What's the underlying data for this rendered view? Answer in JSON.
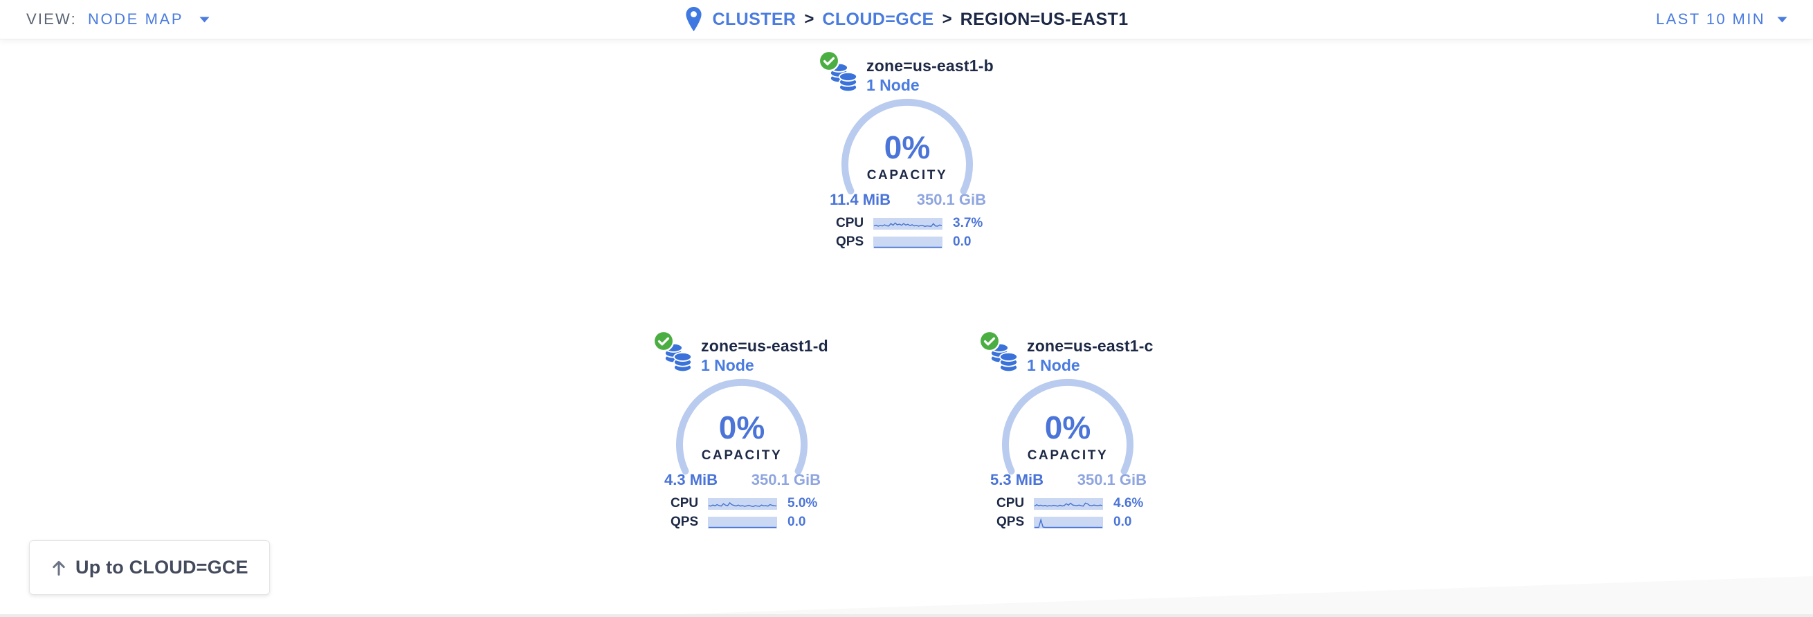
{
  "colors": {
    "accent_blue": "#4a7bdf",
    "value_blue": "#4a74d8",
    "light_blue": "#8fa5e0",
    "arc_blue": "#b9cbee",
    "spark_bg": "#cbd8f3",
    "spark_line": "#4673d1",
    "dark_navy": "#1c2845",
    "gray_text": "#5b6474",
    "green_ok": "#4bae43"
  },
  "toolbar": {
    "view_label": "VIEW:",
    "view_value": "NODE MAP",
    "time_range": "LAST 10 MIN"
  },
  "breadcrumb": {
    "separator": ">",
    "items": [
      {
        "label": "CLUSTER"
      },
      {
        "label": "CLOUD=GCE"
      },
      {
        "label": "REGION=US-EAST1"
      }
    ]
  },
  "icons": {
    "pin": "map-pin-icon",
    "zone": "database-stack-icon",
    "health": "health-check-icon",
    "caret": "chevron-down-icon",
    "up_arrow": "arrow-up-icon"
  },
  "zones": [
    {
      "name": "zone=us-east1-b",
      "nodes": "1 Node",
      "capacity_pct": "0%",
      "capacity_label": "CAPACITY",
      "capacity_used": "11.4 MiB",
      "capacity_total": "350.1 GiB",
      "cpu_label": "CPU",
      "cpu_value": "3.7%",
      "qps_label": "QPS",
      "qps_value": "0.0",
      "cpu_spark": [
        0.3,
        0.38,
        0.27,
        0.35,
        0.3,
        0.42,
        0.31,
        0.29,
        0.56,
        0.37,
        0.63,
        0.42,
        0.5,
        0.37,
        0.56,
        0.4,
        0.48,
        0.34,
        0.43,
        0.3,
        0.37,
        0.27,
        0.34,
        0.35,
        0.24,
        0.3,
        0.27,
        0.25,
        0.55,
        0.29,
        0.27,
        0.4,
        0.33
      ],
      "qps_spark": [
        0,
        0,
        0,
        0,
        0,
        0,
        0,
        0,
        0,
        0,
        0,
        0,
        0,
        0,
        0,
        0,
        0,
        0,
        0,
        0,
        0,
        0,
        0,
        0,
        0,
        0,
        0,
        0,
        0,
        0,
        0,
        0,
        0
      ]
    },
    {
      "name": "zone=us-east1-d",
      "nodes": "1 Node",
      "capacity_pct": "0%",
      "capacity_label": "CAPACITY",
      "capacity_used": "4.3 MiB",
      "capacity_total": "350.1 GiB",
      "cpu_label": "CPU",
      "cpu_value": "5.0%",
      "qps_label": "QPS",
      "qps_value": "0.0",
      "cpu_spark": [
        0.34,
        0.3,
        0.41,
        0.33,
        0.46,
        0.35,
        0.3,
        0.56,
        0.4,
        0.34,
        0.66,
        0.45,
        0.37,
        0.31,
        0.41,
        0.3,
        0.35,
        0.27,
        0.32,
        0.39,
        0.3,
        0.24,
        0.35,
        0.3,
        0.27,
        0.41,
        0.32,
        0.35,
        0.29,
        0.46,
        0.38,
        0.34,
        0.31
      ],
      "qps_spark": [
        0,
        0,
        0,
        0,
        0,
        0,
        0,
        0,
        0,
        0,
        0,
        0,
        0,
        0,
        0,
        0,
        0,
        0,
        0,
        0,
        0,
        0,
        0,
        0,
        0,
        0,
        0,
        0,
        0,
        0,
        0,
        0,
        0
      ]
    },
    {
      "name": "zone=us-east1-c",
      "nodes": "1 Node",
      "capacity_pct": "0%",
      "capacity_label": "CAPACITY",
      "capacity_used": "5.3 MiB",
      "capacity_total": "350.1 GiB",
      "cpu_label": "CPU",
      "cpu_value": "4.6%",
      "qps_label": "QPS",
      "qps_value": "0.0",
      "cpu_spark": [
        0.29,
        0.45,
        0.34,
        0.4,
        0.31,
        0.38,
        0.29,
        0.35,
        0.31,
        0.38,
        0.34,
        0.29,
        0.39,
        0.31,
        0.35,
        0.56,
        0.4,
        0.62,
        0.42,
        0.37,
        0.34,
        0.41,
        0.34,
        0.29,
        0.63,
        0.55,
        0.37,
        0.34,
        0.41,
        0.37,
        0.34,
        0.41,
        0.34
      ],
      "qps_spark": [
        0,
        0,
        0,
        0.85,
        0.04,
        0,
        0,
        0,
        0,
        0,
        0,
        0,
        0,
        0,
        0,
        0,
        0,
        0,
        0,
        0,
        0,
        0,
        0,
        0,
        0,
        0,
        0,
        0,
        0,
        0,
        0,
        0,
        0
      ]
    }
  ],
  "up_button": {
    "label": "Up to CLOUD=GCE"
  }
}
